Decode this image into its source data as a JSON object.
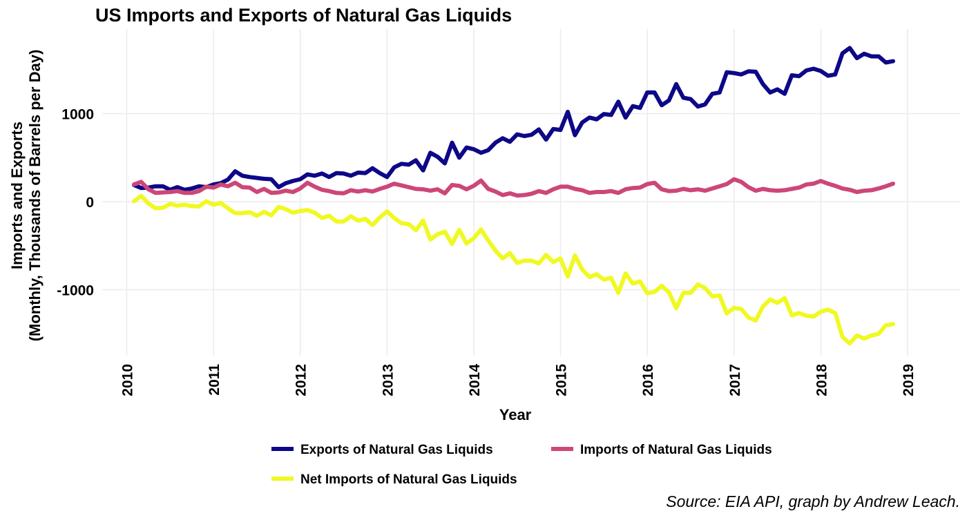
{
  "chart_data": {
    "type": "line",
    "title": "US Imports and Exports of Natural Gas Liquids",
    "xlabel": "Year",
    "ylabel_line1": "Imports and Exports",
    "ylabel_line2": "(Monthly, Thousands of Barrels per Day)",
    "caption": "Source: EIA API, graph by Andrew Leach.",
    "xlim": [
      2010,
      2019
    ],
    "ylim": [
      -1650,
      1880
    ],
    "x_ticks": [
      2010,
      2011,
      2012,
      2013,
      2014,
      2015,
      2016,
      2017,
      2018,
      2019
    ],
    "y_ticks": [
      -1000,
      0,
      1000
    ],
    "grid": true,
    "legend_position": "bottom",
    "x_start": 2010.083,
    "x_step": 0.08333,
    "series": [
      {
        "name": "Exports of Natural Gas Liquids",
        "color": "#0d0887",
        "values": [
          190,
          155,
          160,
          175,
          175,
          135,
          165,
          135,
          150,
          175,
          165,
          195,
          210,
          250,
          345,
          295,
          280,
          270,
          260,
          255,
          165,
          210,
          235,
          255,
          310,
          295,
          320,
          280,
          325,
          320,
          295,
          330,
          325,
          380,
          325,
          280,
          390,
          430,
          420,
          470,
          355,
          555,
          510,
          435,
          670,
          500,
          615,
          595,
          555,
          585,
          670,
          720,
          680,
          765,
          745,
          760,
          820,
          705,
          825,
          815,
          1020,
          755,
          900,
          955,
          935,
          995,
          985,
          1135,
          955,
          1085,
          1065,
          1240,
          1240,
          1095,
          1150,
          1335,
          1180,
          1165,
          1080,
          1105,
          1225,
          1240,
          1470,
          1460,
          1445,
          1480,
          1475,
          1335,
          1240,
          1275,
          1225,
          1435,
          1425,
          1490,
          1510,
          1485,
          1430,
          1445,
          1685,
          1745,
          1630,
          1680,
          1650,
          1650,
          1580,
          1595
        ]
      },
      {
        "name": "Imports of Natural Gas Liquids",
        "color": "#cc4778",
        "values": [
          195,
          225,
          140,
          100,
          105,
          110,
          120,
          100,
          100,
          120,
          170,
          160,
          195,
          175,
          215,
          165,
          160,
          110,
          145,
          100,
          105,
          125,
          110,
          150,
          215,
          170,
          135,
          120,
          100,
          95,
          130,
          115,
          130,
          115,
          145,
          170,
          205,
          185,
          165,
          145,
          140,
          125,
          140,
          95,
          190,
          180,
          140,
          180,
          240,
          145,
          115,
          75,
          95,
          70,
          75,
          90,
          120,
          100,
          140,
          170,
          170,
          145,
          130,
          100,
          110,
          110,
          120,
          100,
          140,
          155,
          160,
          200,
          215,
          140,
          120,
          125,
          145,
          130,
          140,
          125,
          150,
          175,
          200,
          255,
          225,
          165,
          125,
          145,
          130,
          125,
          130,
          145,
          160,
          195,
          205,
          235,
          205,
          180,
          150,
          135,
          110,
          125,
          130,
          150,
          175,
          205
        ]
      },
      {
        "name": "Net Imports of Natural Gas Liquids",
        "color": "#f0f921",
        "values": [
          5,
          65,
          -20,
          -75,
          -70,
          -25,
          -45,
          -35,
          -50,
          -55,
          5,
          -35,
          -15,
          -75,
          -130,
          -130,
          -120,
          -160,
          -115,
          -155,
          -60,
          -85,
          -125,
          -105,
          -95,
          -125,
          -185,
          -160,
          -225,
          -225,
          -165,
          -215,
          -195,
          -265,
          -180,
          -110,
          -185,
          -245,
          -255,
          -325,
          -215,
          -430,
          -370,
          -340,
          -480,
          -320,
          -475,
          -415,
          -315,
          -440,
          -555,
          -645,
          -585,
          -695,
          -670,
          -670,
          -700,
          -605,
          -685,
          -645,
          -850,
          -610,
          -770,
          -855,
          -825,
          -885,
          -865,
          -1035,
          -815,
          -930,
          -905,
          -1040,
          -1025,
          -955,
          -1030,
          -1210,
          -1035,
          -1035,
          -940,
          -980,
          -1075,
          -1065,
          -1270,
          -1205,
          -1220,
          -1315,
          -1350,
          -1190,
          -1110,
          -1150,
          -1095,
          -1290,
          -1265,
          -1295,
          -1305,
          -1250,
          -1225,
          -1265,
          -1535,
          -1610,
          -1520,
          -1555,
          -1520,
          -1500,
          -1405,
          -1390
        ]
      }
    ]
  }
}
